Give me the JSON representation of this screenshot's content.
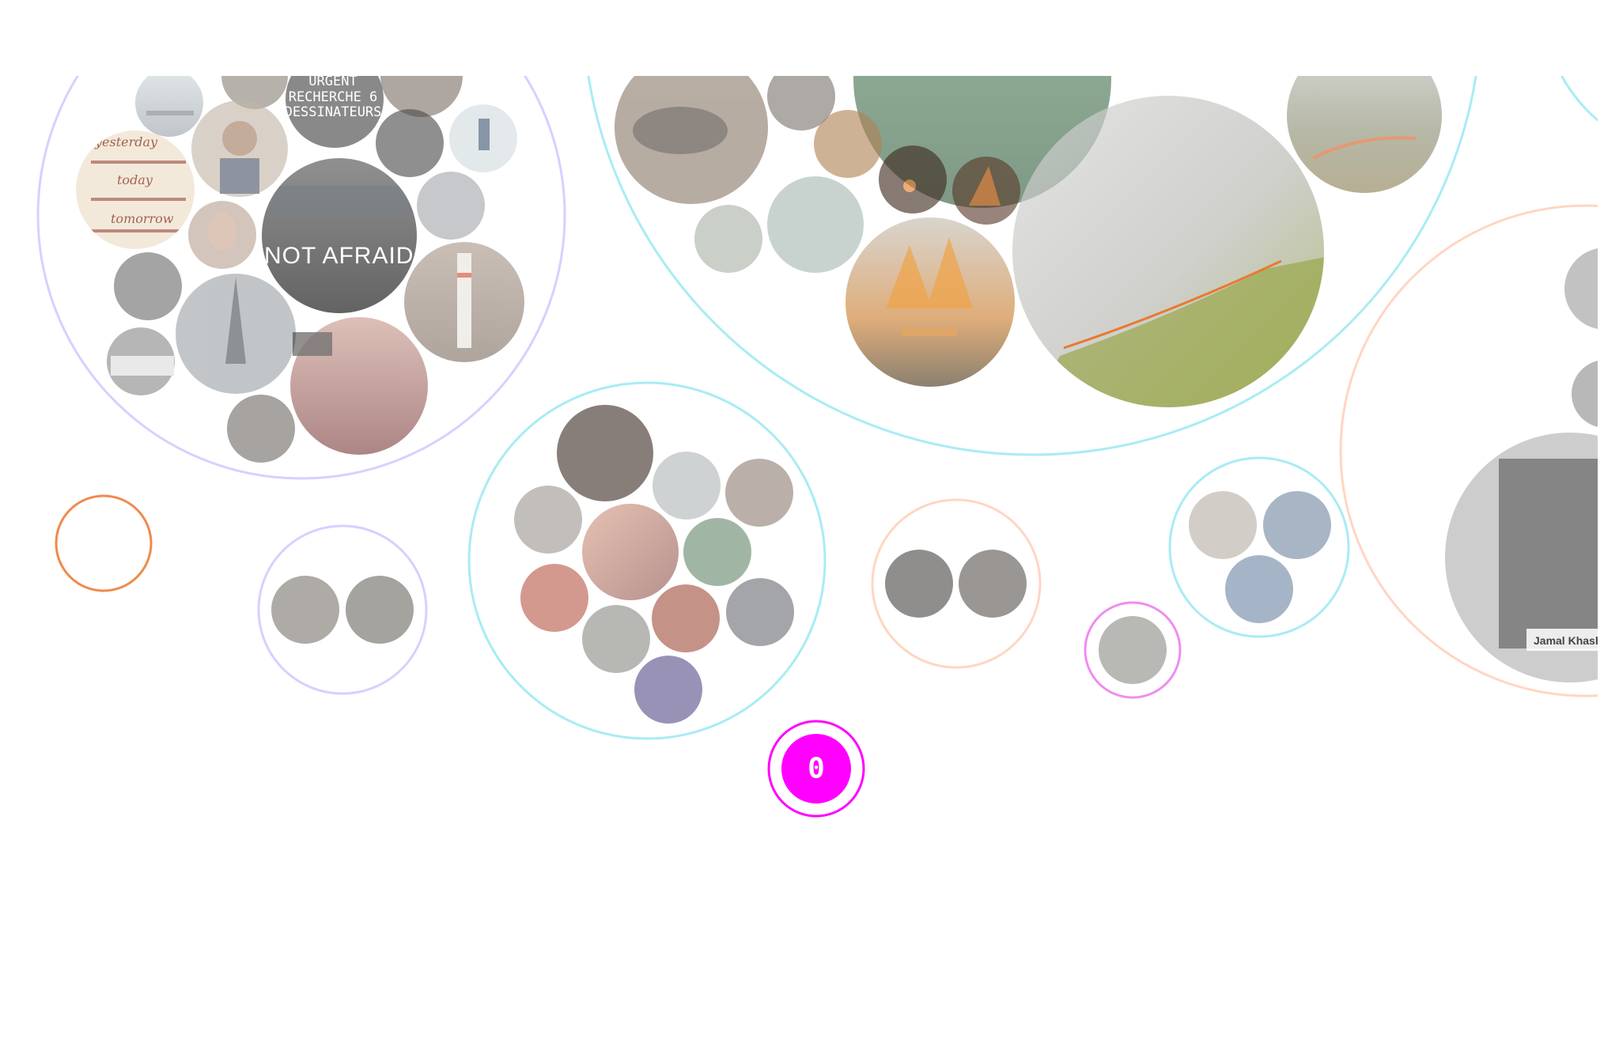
{
  "colors": {
    "background": "#ffffff",
    "ring_purple": "#d9cfff",
    "ring_cyan": "#a8ecf4",
    "ring_peach": "#ffd6c2",
    "ring_orange": "#f08a4b",
    "ring_magenta": "#f08cf0",
    "counter_fill": "#ff00ff",
    "counter_ring": "#ff00ff"
  },
  "cluster_charlie_hebdo": {
    "sign_text": [
      "URGENT",
      "RECHERCHE 6",
      "DESSINATEURS"
    ],
    "clock_words": [
      "yesterday",
      "today",
      "tomorrow"
    ],
    "banner_text": "NOT AFRAID",
    "photo_icons": [
      "tower-photo",
      "eiffel-tower-photo",
      "crowd-photo",
      "portrait-photo",
      "paris-street-photo"
    ]
  },
  "cluster_wildfires": {
    "photo_icons": [
      "smoke-field-photo",
      "forest-fire-photo",
      "burning-animal-photo",
      "aerial-forest-photo"
    ]
  },
  "cluster_khashoggi": {
    "caption": "Jamal Khasho"
  },
  "counter": {
    "value": "0"
  }
}
